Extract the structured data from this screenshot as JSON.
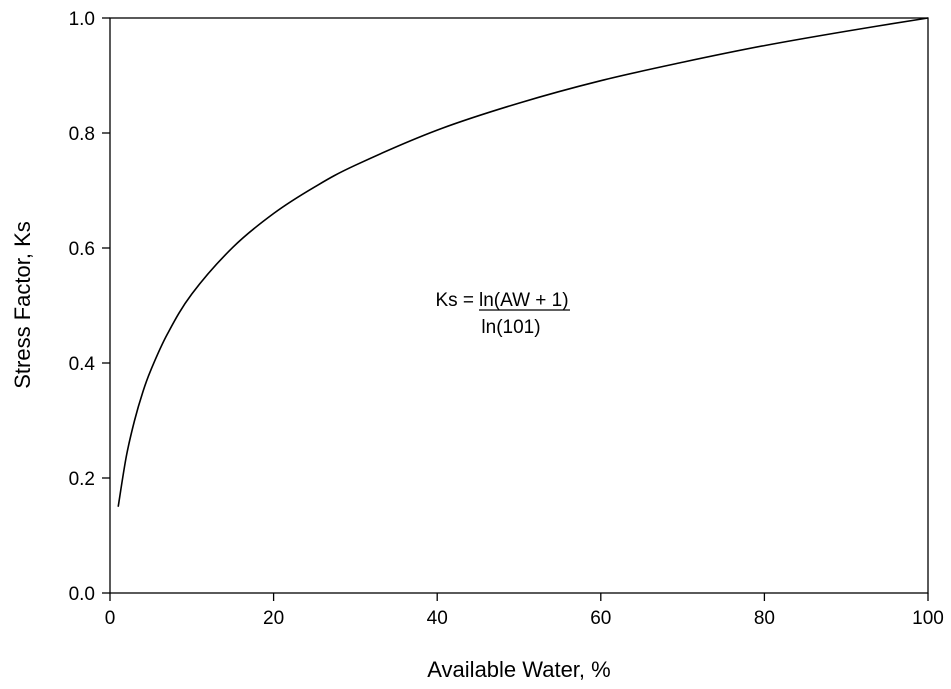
{
  "chart_data": {
    "type": "line",
    "xlabel": "Available Water, %",
    "ylabel": "Stress Factor, Ks",
    "xlim": [
      0,
      100
    ],
    "ylim": [
      0,
      1.0
    ],
    "xticks": [
      "0",
      "20",
      "40",
      "60",
      "80",
      "100"
    ],
    "yticks": [
      "0.0",
      "0.2",
      "0.4",
      "0.6",
      "0.8",
      "1.0"
    ],
    "grid": false,
    "series": [
      {
        "x": [
          1,
          2,
          3,
          4,
          5,
          7,
          10,
          15,
          20,
          25,
          30,
          40,
          50,
          60,
          70,
          80,
          90,
          100
        ],
        "y": [
          0.15,
          0.238,
          0.3,
          0.349,
          0.388,
          0.45,
          0.52,
          0.601,
          0.66,
          0.706,
          0.744,
          0.805,
          0.852,
          0.891,
          0.923,
          0.952,
          0.977,
          1.0
        ]
      }
    ],
    "annotation": {
      "lhs": "Ks =",
      "numerator": "ln(AW + 1)",
      "denominator": "ln(101)"
    }
  }
}
